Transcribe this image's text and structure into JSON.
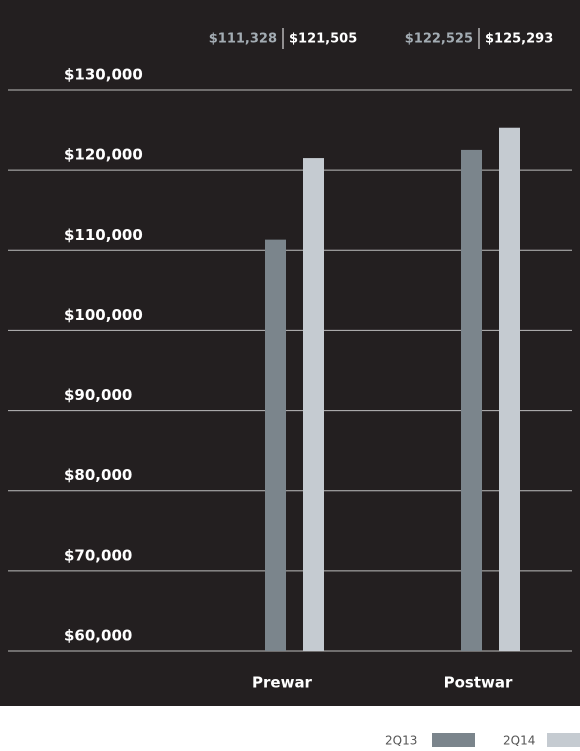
{
  "chart_data": {
    "type": "bar",
    "categories": [
      "Prewar",
      "Postwar"
    ],
    "series": [
      {
        "name": "2Q13",
        "color": "#7b858c",
        "values": [
          111328,
          122525
        ],
        "value_labels": [
          "$111,328",
          "$122,525"
        ]
      },
      {
        "name": "2Q14",
        "color": "#c5cbd1",
        "values": [
          121505,
          125293
        ],
        "value_labels": [
          "$121,505",
          "$125,293"
        ]
      }
    ],
    "ylim": [
      60000,
      130000
    ],
    "yticks": [
      {
        "value": 60000,
        "label": "$60,000"
      },
      {
        "value": 70000,
        "label": "$70,000"
      },
      {
        "value": 80000,
        "label": "$80,000"
      },
      {
        "value": 90000,
        "label": "$90,000"
      },
      {
        "value": 100000,
        "label": "$100,000"
      },
      {
        "value": 110000,
        "label": "$110,000"
      },
      {
        "value": 120000,
        "label": "$120,000"
      },
      {
        "value": 130000,
        "label": "$130,000"
      }
    ],
    "grid": true,
    "legend": "bottom-right"
  }
}
